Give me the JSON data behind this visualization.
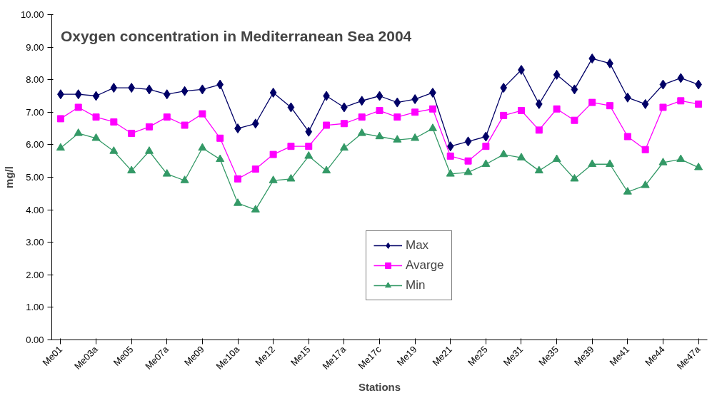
{
  "chart_data": {
    "type": "line",
    "title": "Oxygen concentration in Mediterranean Sea 2004",
    "xlabel": "Stations",
    "ylabel": "mg/l",
    "categories": [
      "Me01",
      null,
      "Me03a",
      null,
      "Me05",
      null,
      "Me07a",
      null,
      "Me09",
      null,
      "Me10a",
      null,
      "Me12",
      null,
      "Me15",
      null,
      "Me17a",
      null,
      "Me17c",
      null,
      "Me19",
      null,
      "Me21",
      null,
      "Me25",
      null,
      "Me31",
      null,
      "Me35",
      null,
      "Me39",
      null,
      "Me41",
      null,
      "Me44",
      null,
      "Me47a"
    ],
    "series": [
      {
        "name": "Max",
        "color": "#000066",
        "marker": "diamond",
        "values": [
          7.55,
          7.55,
          7.5,
          7.75,
          7.75,
          7.7,
          7.55,
          7.65,
          7.7,
          7.85,
          6.5,
          6.65,
          7.6,
          7.15,
          6.4,
          7.5,
          7.15,
          7.35,
          7.5,
          7.3,
          7.4,
          7.6,
          5.95,
          6.1,
          6.25,
          7.75,
          8.3,
          7.25,
          8.15,
          7.7,
          8.65,
          8.5,
          7.45,
          7.25,
          7.85,
          8.05,
          7.85
        ]
      },
      {
        "name": "Avarge",
        "color": "#ff00ff",
        "marker": "square",
        "values": [
          6.8,
          7.15,
          6.85,
          6.7,
          6.35,
          6.55,
          6.85,
          6.6,
          6.95,
          6.2,
          4.95,
          5.25,
          5.7,
          5.95,
          5.95,
          6.6,
          6.65,
          6.85,
          7.05,
          6.85,
          7.0,
          7.1,
          5.65,
          5.5,
          5.95,
          6.9,
          7.05,
          6.45,
          7.1,
          6.75,
          7.3,
          7.2,
          6.25,
          5.85,
          7.15,
          7.35,
          7.25
        ]
      },
      {
        "name": "Min",
        "color": "#339966",
        "marker": "triangle",
        "values": [
          5.9,
          6.35,
          6.2,
          5.8,
          5.2,
          5.8,
          5.1,
          4.9,
          5.9,
          5.55,
          4.2,
          4.0,
          4.9,
          4.95,
          5.65,
          5.2,
          5.9,
          6.35,
          6.25,
          6.15,
          6.2,
          6.5,
          5.1,
          5.15,
          5.4,
          5.7,
          5.6,
          5.2,
          5.55,
          4.95,
          5.4,
          5.4,
          4.55,
          4.75,
          5.45,
          5.55,
          5.3
        ]
      }
    ],
    "ylim": [
      0,
      10
    ],
    "yticks": [
      {
        "value": 0,
        "label": "0.00"
      },
      {
        "value": 1,
        "label": "1.00"
      },
      {
        "value": 2,
        "label": "2.00"
      },
      {
        "value": 3,
        "label": "3.00"
      },
      {
        "value": 4,
        "label": "4.00"
      },
      {
        "value": 5,
        "label": "5.00"
      },
      {
        "value": 6,
        "label": "6.00"
      },
      {
        "value": 7,
        "label": "7.00"
      },
      {
        "value": 8,
        "label": "8.00"
      },
      {
        "value": 9,
        "label": "9.00"
      },
      {
        "value": 10,
        "label": "10.00"
      }
    ],
    "legend": "bottom",
    "line_style": "solid"
  }
}
